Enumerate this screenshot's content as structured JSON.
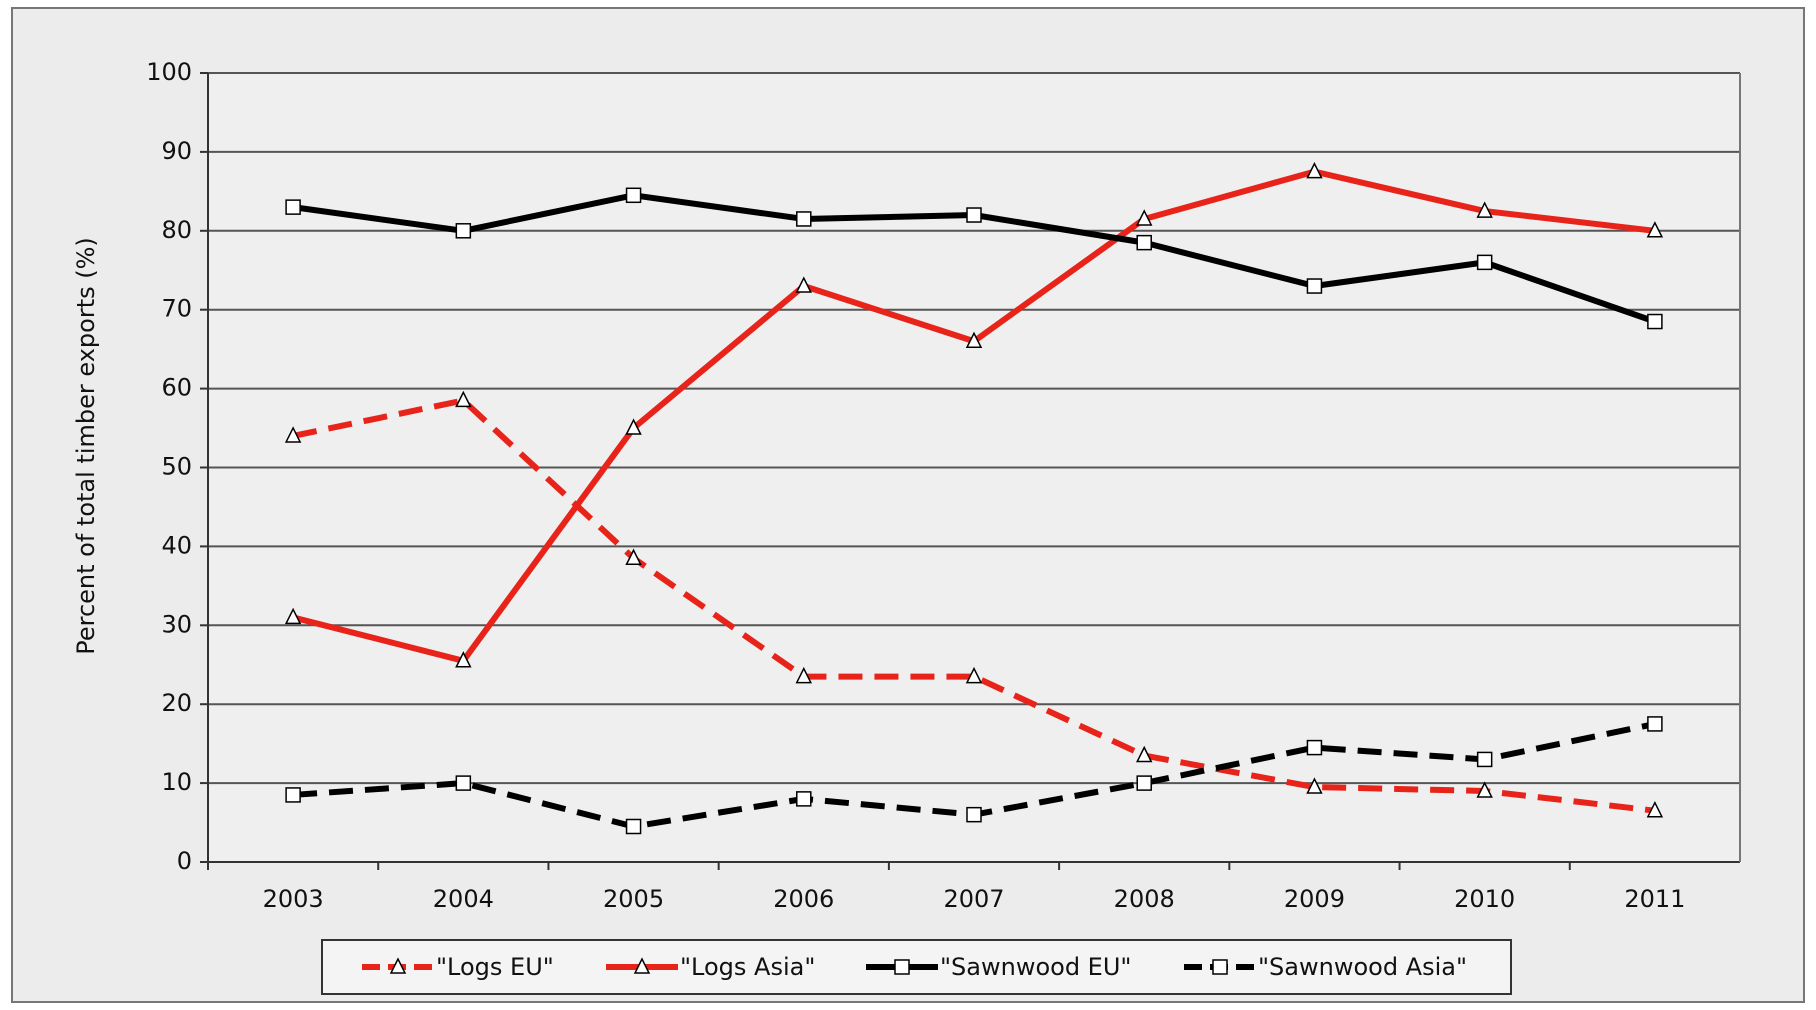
{
  "chart_data": {
    "type": "line",
    "y_label": "Percent of total timber exports (%)",
    "categories": [
      "2003",
      "2004",
      "2005",
      "2006",
      "2007",
      "2008",
      "2009",
      "2010",
      "2011"
    ],
    "series": [
      {
        "name": "\"Logs EU\"",
        "color": "#e8231a",
        "dashed": true,
        "marker": "triangle",
        "values": [
          54,
          58.5,
          38.5,
          23.5,
          23.5,
          13.5,
          9.5,
          9,
          6.5
        ]
      },
      {
        "name": "\"Logs Asia\"",
        "color": "#e8231a",
        "dashed": false,
        "marker": "triangle",
        "values": [
          31,
          25.5,
          55,
          73,
          66,
          81.5,
          87.5,
          82.5,
          80
        ]
      },
      {
        "name": "\"Sawnwood EU\"",
        "color": "#000000",
        "dashed": false,
        "marker": "square",
        "values": [
          83,
          80,
          84.5,
          81.5,
          82,
          78.5,
          73,
          76,
          68.5
        ]
      },
      {
        "name": "\"Sawnwood Asia\"",
        "color": "#000000",
        "dashed": true,
        "marker": "square",
        "values": [
          8.5,
          10,
          4.5,
          8,
          6,
          10,
          14.5,
          13,
          17.5
        ]
      }
    ],
    "ylim": [
      0,
      100
    ],
    "yticks": [
      0,
      10,
      20,
      30,
      40,
      50,
      60,
      70,
      80,
      90,
      100
    ],
    "grid": true,
    "legend": "bottom"
  }
}
